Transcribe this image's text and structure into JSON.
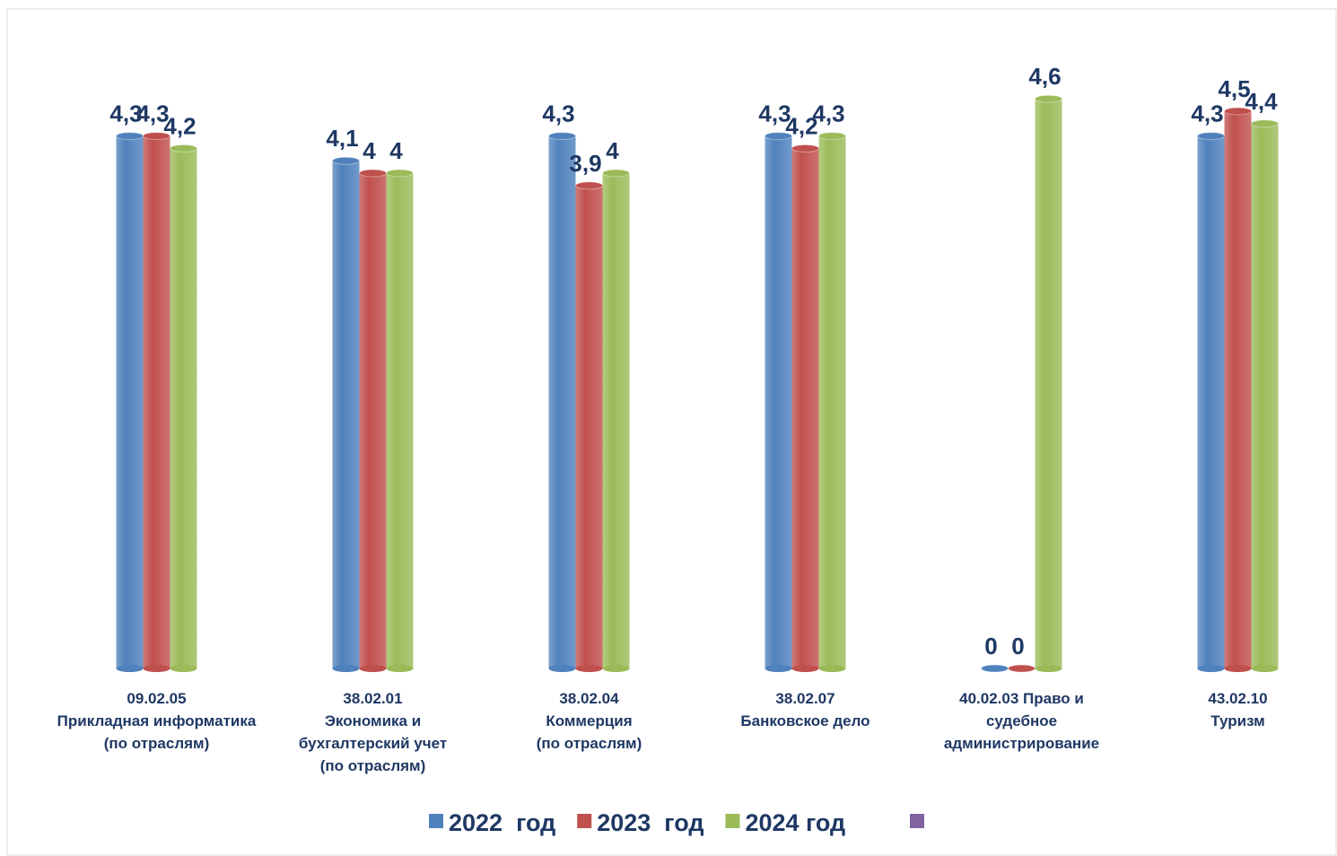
{
  "chart_data": {
    "type": "bar",
    "categories": [
      "09.02.05\nПрикладная информатика\n(по отраслям)",
      "38.02.01\nЭкономика и\nбухгалтерский учет\n(по отраслям)",
      "38.02.04\nКоммерция\n(по отраслям)",
      "38.02.07\nБанковское дело",
      "40.02.03 Право и\nсудебное администрирование",
      "43.02.10\nТуризм"
    ],
    "series": [
      {
        "name": "2022  год",
        "color": "#4f81bd",
        "values": [
          4.3,
          4.1,
          4.3,
          4.3,
          0,
          4.3
        ],
        "value_labels": [
          "4,3",
          "4,1",
          "4,3",
          "4,3",
          "0",
          "4,3"
        ]
      },
      {
        "name": "2023  год",
        "color": "#c0504d",
        "values": [
          4.3,
          4,
          3.9,
          4.2,
          0,
          4.5
        ],
        "value_labels": [
          "4,3",
          "4",
          "3,9",
          "4,2",
          "0",
          "4,5"
        ]
      },
      {
        "name": "2024 год",
        "color": "#9bbb59",
        "values": [
          4.2,
          4,
          4,
          4.3,
          4.6,
          4.4
        ],
        "value_labels": [
          "4,2",
          "4",
          "4",
          "4,3",
          "4,6",
          "4,4"
        ]
      }
    ],
    "ylim": [
      0,
      5
    ]
  }
}
